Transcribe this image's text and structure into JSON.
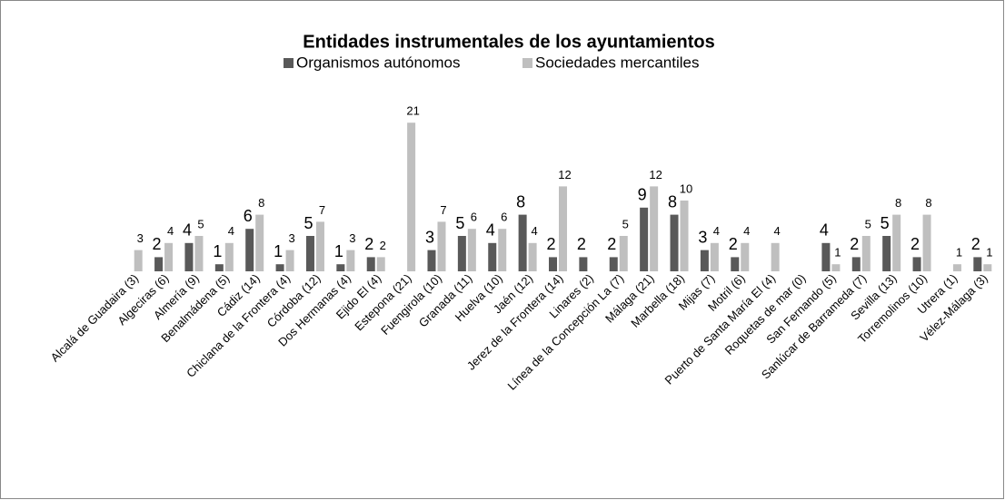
{
  "chart_data": {
    "type": "bar",
    "title": "Entidades instrumentales de los ayuntamientos",
    "categories": [
      "Alcalá de Guadaira (3)",
      "Algeciras (6)",
      "Almería (9)",
      "Benalmádena (5)",
      "Cádiz (14)",
      "Chiclana de la Frontera (4)",
      "Córdoba (12)",
      "Dos Hermanas (4)",
      "Ejido El (4)",
      "Estepona (21)",
      "Fuengirola (10)",
      "Granada (11)",
      "Huelva (10)",
      "Jaén (12)",
      "Jerez de la Frontera (14)",
      "Linares (2)",
      "Línea de la Concepción La (7)",
      "Málaga (21)",
      "Marbella (18)",
      "Mijas (7)",
      "Motril (6)",
      "Puerto de Santa María El (4)",
      "Roquetas de mar (0)",
      "San Fernando (5)",
      "Sanlúcar de Barrameda (7)",
      "Sevilla (13)",
      "Torremolinos (10)",
      "Utrera (1)",
      "Vélez-Málaga (3)"
    ],
    "series": [
      {
        "name": "Organismos autónomos",
        "color": "#595959",
        "values": [
          null,
          2,
          4,
          1,
          6,
          1,
          5,
          1,
          2,
          null,
          3,
          5,
          4,
          8,
          2,
          2,
          2,
          9,
          8,
          3,
          2,
          null,
          null,
          4,
          2,
          5,
          2,
          null,
          2
        ]
      },
      {
        "name": "Sociedades mercantiles",
        "color": "#bfbfbf",
        "values": [
          3,
          4,
          5,
          4,
          8,
          3,
          7,
          3,
          2,
          21,
          7,
          6,
          6,
          4,
          12,
          null,
          5,
          12,
          10,
          4,
          4,
          4,
          null,
          1,
          5,
          8,
          8,
          1,
          1
        ]
      }
    ],
    "legend": "top"
  }
}
